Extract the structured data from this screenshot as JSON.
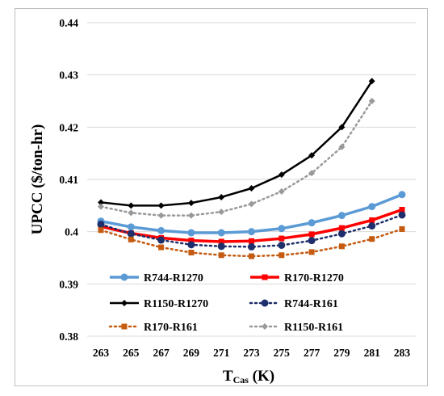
{
  "chart_data": {
    "type": "line",
    "title": "",
    "xlabel": {
      "main": "T",
      "sub": "Cas",
      "unit": " (K)"
    },
    "ylabel": "UPCC ($/ton-hr)",
    "x": [
      263,
      265,
      267,
      269,
      271,
      273,
      275,
      277,
      279,
      281,
      283
    ],
    "xtick_labels": [
      "263",
      "265",
      "267",
      "269",
      "271",
      "273",
      "275",
      "277",
      "279",
      "281",
      "283"
    ],
    "ylim": [
      0.38,
      0.44
    ],
    "ytick_values": [
      0.38,
      0.39,
      0.4,
      0.41,
      0.42,
      0.43,
      0.44
    ],
    "ytick_labels": [
      "0.38",
      "0.39",
      "0.4",
      "0.41",
      "0.42",
      "0.43",
      "0.44"
    ],
    "grid": "horizontal",
    "legend_position": "inside-bottom",
    "series": [
      {
        "name": "R744-R1270",
        "color": "#5b9bd5",
        "style": "solid",
        "marker": "circle",
        "width": 3.5,
        "marker_size": 4.5,
        "values": [
          0.402,
          0.4009,
          0.4002,
          0.3998,
          0.3998,
          0.4,
          0.4006,
          0.4017,
          0.4031,
          0.4048,
          0.4071
        ]
      },
      {
        "name": "R170-R1270",
        "color": "#ff0000",
        "style": "solid",
        "marker": "square",
        "width": 3.5,
        "marker_size": 3.5,
        "values": [
          0.401,
          0.3997,
          0.3988,
          0.3983,
          0.3981,
          0.3982,
          0.3987,
          0.3995,
          0.4007,
          0.4022,
          0.4042
        ]
      },
      {
        "name": "R1150-R1270",
        "color": "#000000",
        "style": "solid",
        "marker": "diamond",
        "width": 2.5,
        "marker_size": 4,
        "values": [
          0.4056,
          0.405,
          0.405,
          0.4055,
          0.4066,
          0.4083,
          0.4109,
          0.4146,
          0.42,
          0.4288,
          null
        ]
      },
      {
        "name": "R744-R161",
        "color": "#1f2f6b",
        "style": "dotted",
        "marker": "circle",
        "width": 2.5,
        "marker_size": 4.5,
        "values": [
          0.4014,
          0.3996,
          0.3984,
          0.3975,
          0.3972,
          0.3971,
          0.3974,
          0.3983,
          0.3996,
          0.4011,
          0.4032
        ]
      },
      {
        "name": "R170-R161",
        "color": "#c55a11",
        "style": "dotted",
        "marker": "square",
        "width": 2.5,
        "marker_size": 3.5,
        "values": [
          0.4003,
          0.3985,
          0.397,
          0.396,
          0.3955,
          0.3953,
          0.3955,
          0.3961,
          0.3972,
          0.3986,
          0.4005
        ]
      },
      {
        "name": "R1150-R161",
        "color": "#999999",
        "style": "dotted",
        "marker": "diamond",
        "width": 2.5,
        "marker_size": 4,
        "values": [
          0.4048,
          0.4036,
          0.4031,
          0.4031,
          0.4038,
          0.4053,
          0.4077,
          0.4112,
          0.4162,
          0.425,
          null
        ]
      }
    ]
  }
}
